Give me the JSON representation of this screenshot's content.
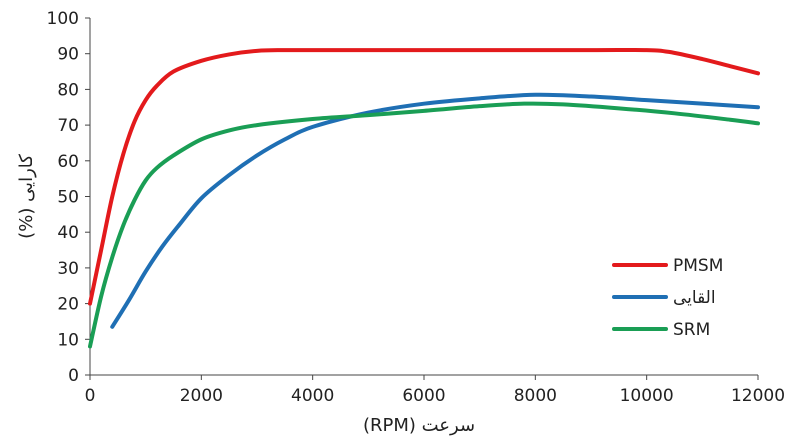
{
  "chart_data": {
    "type": "line",
    "title": "",
    "xlabel": "سرعت (RPM)",
    "ylabel": "کارایی (%)",
    "xlim": [
      0,
      12000
    ],
    "ylim": [
      0,
      100
    ],
    "xticks": [
      0,
      2000,
      4000,
      6000,
      8000,
      10000,
      12000
    ],
    "yticks": [
      0,
      10,
      20,
      30,
      40,
      50,
      60,
      70,
      80,
      90,
      100
    ],
    "grid": false,
    "legend_position": "right",
    "series": [
      {
        "name": "PMSM",
        "color": "#e31a1c",
        "points": [
          [
            0,
            20
          ],
          [
            200,
            35
          ],
          [
            400,
            50
          ],
          [
            600,
            62
          ],
          [
            800,
            71
          ],
          [
            1000,
            77
          ],
          [
            1200,
            81
          ],
          [
            1500,
            85
          ],
          [
            2000,
            88
          ],
          [
            2500,
            89.8
          ],
          [
            3000,
            90.8
          ],
          [
            3500,
            91
          ],
          [
            5000,
            91
          ],
          [
            7000,
            91
          ],
          [
            9000,
            91
          ],
          [
            10000,
            91
          ],
          [
            10400,
            90.5
          ],
          [
            11000,
            88.5
          ],
          [
            11500,
            86.5
          ],
          [
            12000,
            84.5
          ]
        ]
      },
      {
        "name": "القایی",
        "color": "#1f6fb4",
        "points": [
          [
            400,
            13.5
          ],
          [
            700,
            21
          ],
          [
            1000,
            29
          ],
          [
            1300,
            36
          ],
          [
            1600,
            42
          ],
          [
            2000,
            49.5
          ],
          [
            2500,
            56
          ],
          [
            3000,
            61.5
          ],
          [
            3500,
            66
          ],
          [
            4000,
            69.5
          ],
          [
            5000,
            73.5
          ],
          [
            6000,
            76
          ],
          [
            7000,
            77.5
          ],
          [
            8000,
            78.5
          ],
          [
            9000,
            78
          ],
          [
            10000,
            77
          ],
          [
            11000,
            76
          ],
          [
            12000,
            75
          ]
        ]
      },
      {
        "name": "SRM",
        "color": "#1a9e55",
        "points": [
          [
            0,
            8
          ],
          [
            200,
            22
          ],
          [
            400,
            33
          ],
          [
            600,
            42
          ],
          [
            800,
            49
          ],
          [
            1000,
            54.5
          ],
          [
            1200,
            58
          ],
          [
            1500,
            61.5
          ],
          [
            2000,
            66
          ],
          [
            2500,
            68.5
          ],
          [
            3000,
            70
          ],
          [
            4000,
            71.7
          ],
          [
            5000,
            72.8
          ],
          [
            6000,
            74
          ],
          [
            7000,
            75.3
          ],
          [
            7800,
            76
          ],
          [
            8500,
            75.8
          ],
          [
            9500,
            74.7
          ],
          [
            10500,
            73.3
          ],
          [
            11500,
            71.5
          ],
          [
            12000,
            70.5
          ]
        ]
      }
    ]
  }
}
